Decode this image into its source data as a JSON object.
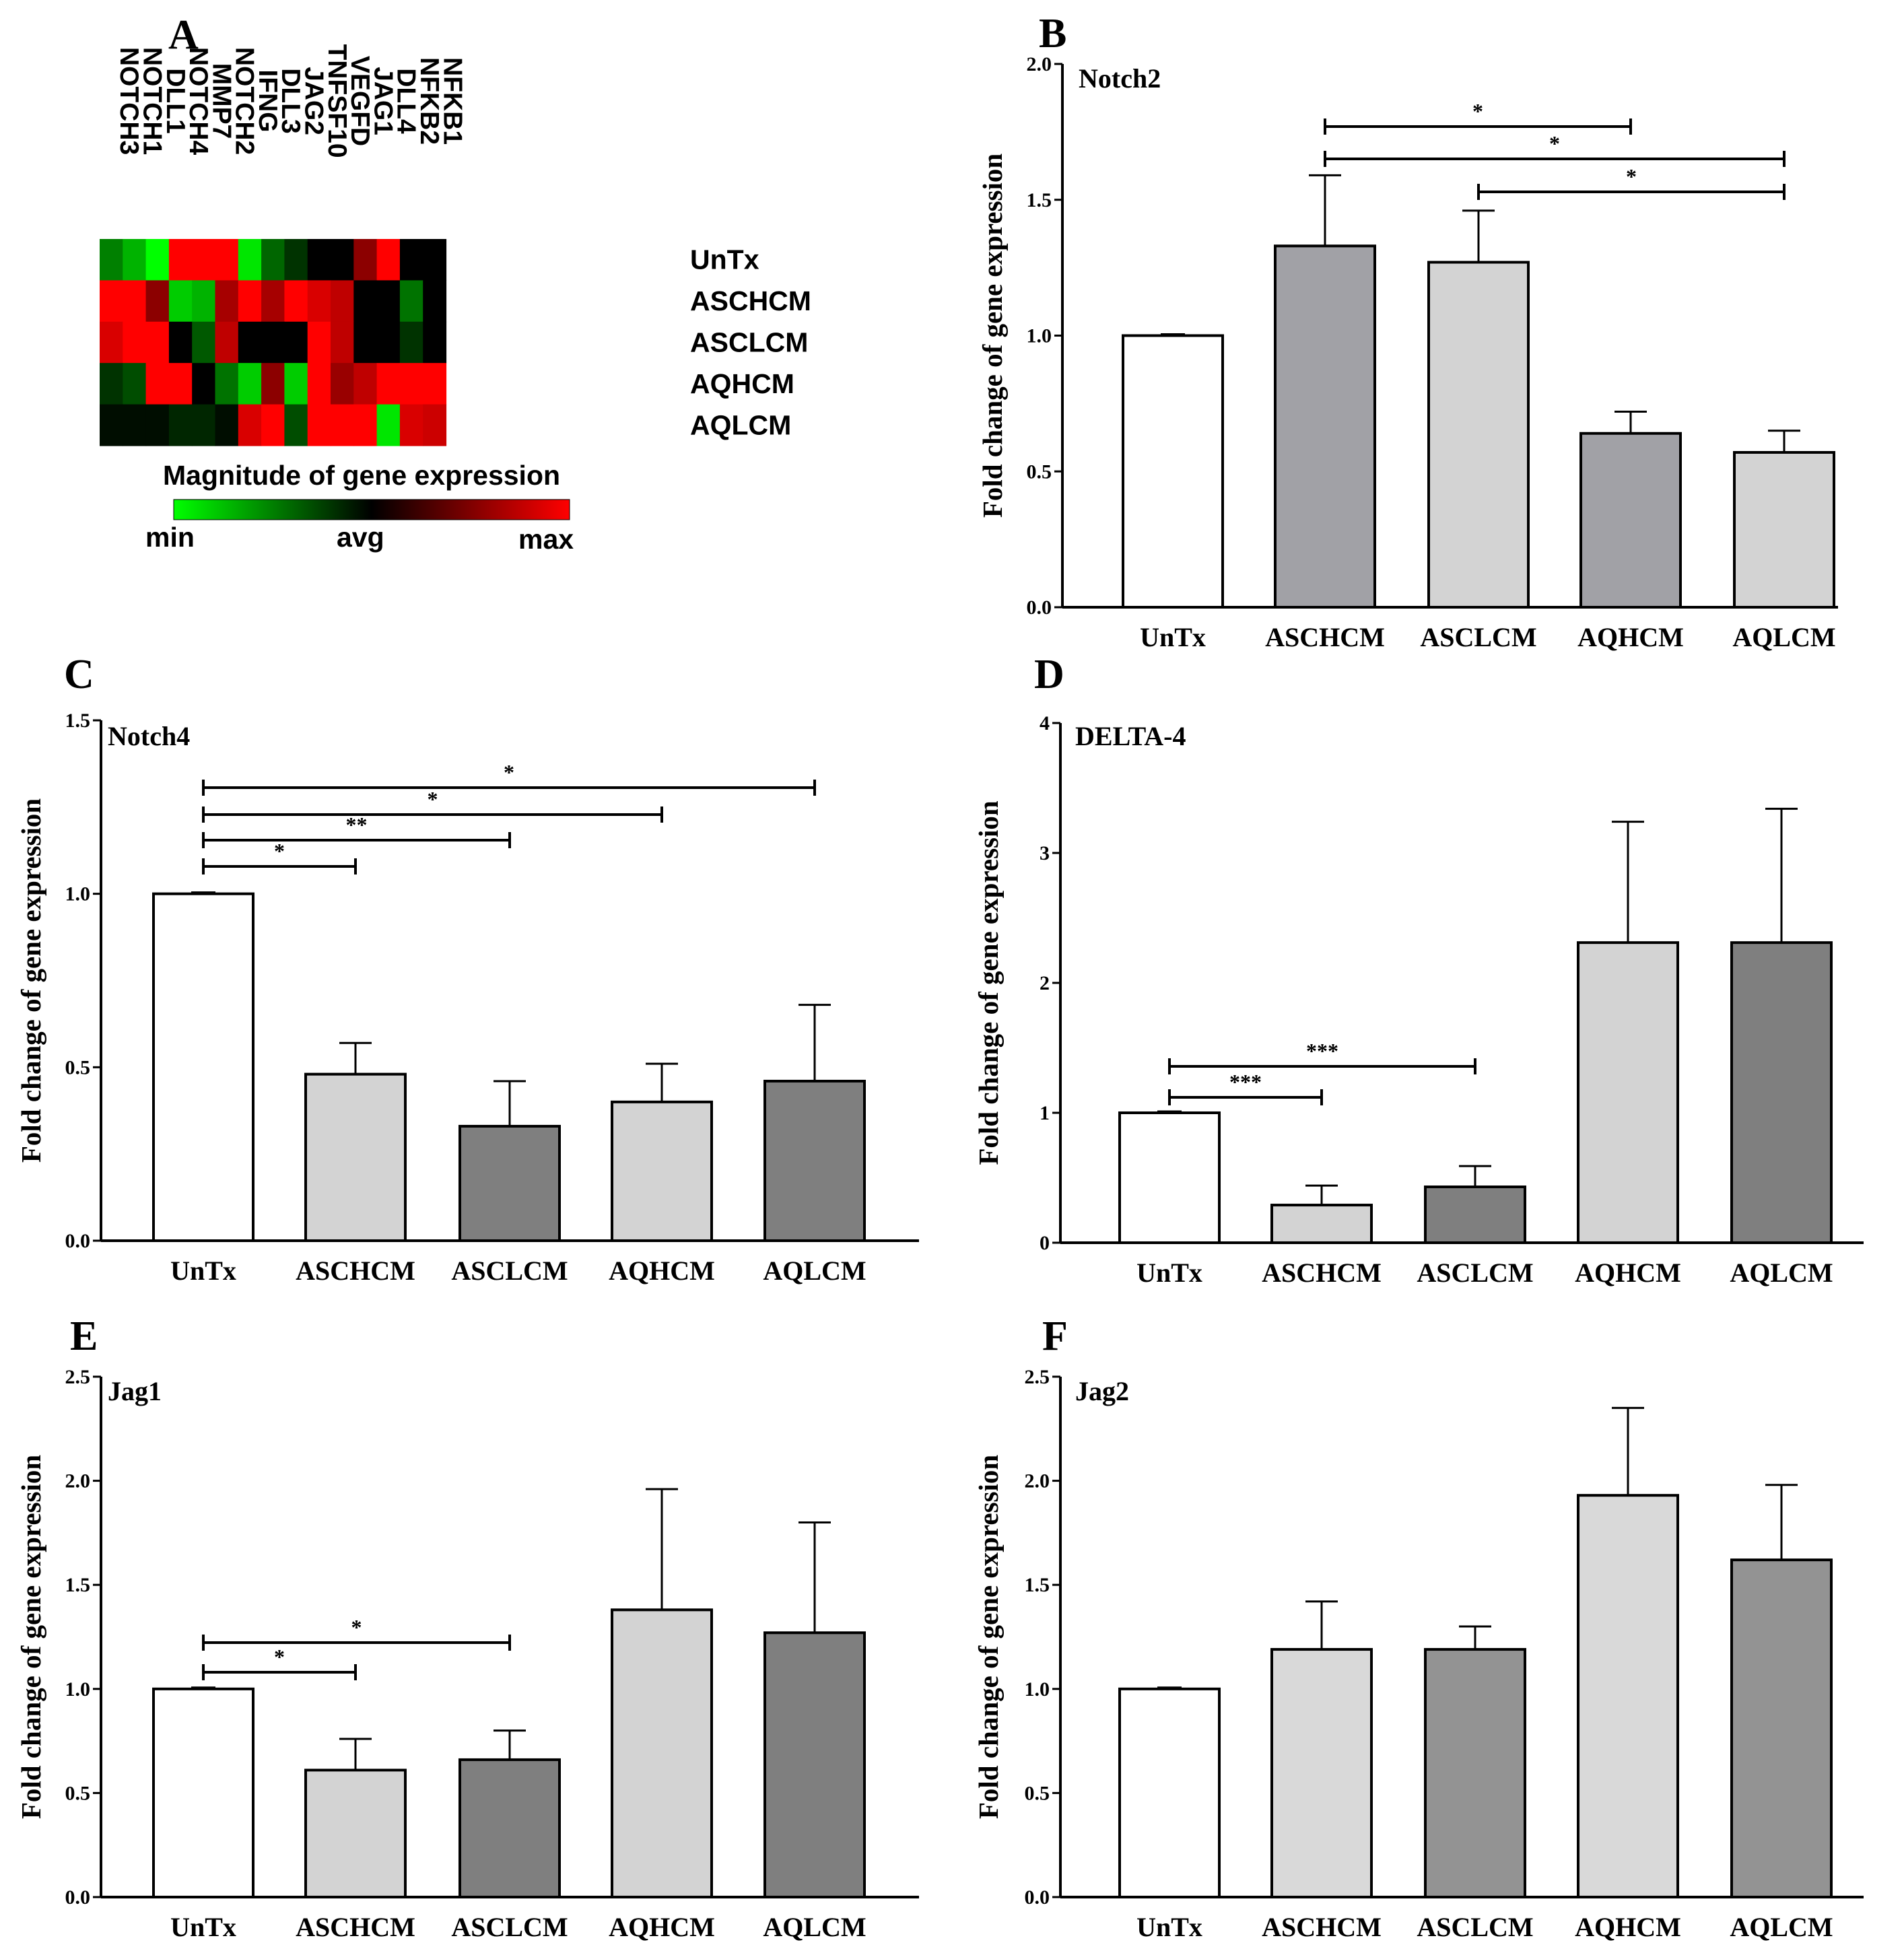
{
  "heatmap": {
    "panel": "A",
    "columns": [
      "NOTCH3",
      "NOTCH1",
      "DLL1",
      "NOTCH4",
      "MMP7",
      "NOTCH2",
      "IFNG",
      "DLL3",
      "JAG2",
      "TNFSF10",
      "VEGFD",
      "JAG1",
      "DLL4",
      "NFKB2",
      "NFKB1"
    ],
    "rows": [
      "UnTx",
      "ASCHCM",
      "ASCLCM",
      "AQHCM",
      "AQLCM"
    ],
    "values": [
      [
        -0.5,
        -0.7,
        -1.0,
        1.0,
        1.0,
        1.0,
        -0.9,
        -0.4,
        -0.2,
        0.0,
        0.0,
        0.55,
        1.0,
        0.0,
        0.0
      ],
      [
        1.0,
        1.0,
        0.55,
        -0.8,
        -0.7,
        0.65,
        1.0,
        0.65,
        1.0,
        0.85,
        0.75,
        0.0,
        0.0,
        -0.45,
        0.0
      ],
      [
        0.85,
        1.0,
        1.0,
        0.0,
        -0.35,
        0.75,
        0.0,
        0.0,
        0.0,
        1.0,
        0.75,
        0.0,
        0.0,
        -0.2,
        0.0
      ],
      [
        -0.2,
        -0.3,
        1.0,
        1.0,
        0.0,
        -0.45,
        -0.8,
        0.55,
        -0.8,
        1.0,
        0.6,
        0.75,
        1.0,
        1.0,
        1.0
      ],
      [
        -0.05,
        -0.05,
        -0.05,
        -0.15,
        -0.15,
        -0.05,
        0.85,
        1.0,
        -0.3,
        1.0,
        1.0,
        1.0,
        -0.9,
        0.85,
        0.8
      ]
    ],
    "legend": {
      "title": "Magnitude  of gene expression",
      "min": "min",
      "avg": "avg",
      "max": "max",
      "colors": [
        "#00ff00",
        "#000000",
        "#ff0000"
      ]
    }
  },
  "chart_data": [
    {
      "panel": "B",
      "type": "bar",
      "title": "Notch2",
      "ylabel": "Fold change of gene expression",
      "ylim": [
        0,
        2.0
      ],
      "yticks": [
        "0.0",
        "0.5",
        "1.0",
        "1.5",
        "2.0"
      ],
      "categories": [
        "UnTx",
        "ASCHCM",
        "ASCLCM",
        "AQHCM",
        "AQLCM"
      ],
      "values": [
        1.0,
        1.33,
        1.27,
        0.64,
        0.57
      ],
      "errors": [
        0.0,
        0.26,
        0.19,
        0.08,
        0.08
      ],
      "colors": [
        "#ffffff",
        "#a1a1a6",
        "#d3d3d3",
        "#a1a1a6",
        "#d3d3d3"
      ],
      "significance": [
        {
          "from": 1,
          "to": 3,
          "label": "*"
        },
        {
          "from": 1,
          "to": 4,
          "label": "*"
        },
        {
          "from": 2,
          "to": 4,
          "label": "*"
        }
      ]
    },
    {
      "panel": "C",
      "type": "bar",
      "title": "Notch4",
      "ylabel": "Fold change of gene expression",
      "ylim": [
        0,
        1.5
      ],
      "yticks": [
        "0.0",
        "0.5",
        "1.0",
        "1.5"
      ],
      "categories": [
        "UnTx",
        "ASCHCM",
        "ASCLCM",
        "AQHCM",
        "AQLCM"
      ],
      "values": [
        1.0,
        0.48,
        0.33,
        0.4,
        0.46
      ],
      "errors": [
        0.0,
        0.09,
        0.13,
        0.11,
        0.22
      ],
      "colors": [
        "#ffffff",
        "#d3d3d3",
        "#7f7f7f",
        "#d3d3d3",
        "#7f7f7f"
      ],
      "significance": [
        {
          "from": 0,
          "to": 4,
          "label": "*"
        },
        {
          "from": 0,
          "to": 3,
          "label": "*"
        },
        {
          "from": 0,
          "to": 2,
          "label": "**"
        },
        {
          "from": 0,
          "to": 1,
          "label": "*"
        }
      ]
    },
    {
      "panel": "D",
      "type": "bar",
      "title": "DELTA-4",
      "ylabel": "Fold change of gene expression",
      "ylim": [
        0,
        4
      ],
      "yticks": [
        "0",
        "1",
        "2",
        "3",
        "4"
      ],
      "categories": [
        "UnTx",
        "ASCHCM",
        "ASCLCM",
        "AQHCM",
        "AQLCM"
      ],
      "values": [
        1.0,
        0.29,
        0.43,
        2.31,
        2.31
      ],
      "errors": [
        0.0,
        0.15,
        0.16,
        0.93,
        1.03
      ],
      "colors": [
        "#ffffff",
        "#d3d3d3",
        "#7f7f7f",
        "#d3d3d3",
        "#7f7f7f"
      ],
      "significance": [
        {
          "from": 0,
          "to": 2,
          "label": "***"
        },
        {
          "from": 0,
          "to": 1,
          "label": "***"
        }
      ]
    },
    {
      "panel": "E",
      "type": "bar",
      "title": "Jag1",
      "ylabel": "Fold change of gene expression",
      "ylim": [
        0,
        2.5
      ],
      "yticks": [
        "0.0",
        "0.5",
        "1.0",
        "1.5",
        "2.0",
        "2.5"
      ],
      "categories": [
        "UnTx",
        "ASCHCM",
        "ASCLCM",
        "AQHCM",
        "AQLCM"
      ],
      "values": [
        1.0,
        0.61,
        0.66,
        1.38,
        1.27
      ],
      "errors": [
        0.0,
        0.15,
        0.14,
        0.58,
        0.53
      ],
      "colors": [
        "#ffffff",
        "#d3d3d3",
        "#7f7f7f",
        "#d3d3d3",
        "#7f7f7f"
      ],
      "significance": [
        {
          "from": 0,
          "to": 2,
          "label": "*"
        },
        {
          "from": 0,
          "to": 1,
          "label": "*"
        }
      ]
    },
    {
      "panel": "F",
      "type": "bar",
      "title": "Jag2",
      "ylabel": "Fold change of gene expression",
      "ylim": [
        0,
        2.5
      ],
      "yticks": [
        "0.0",
        "0.5",
        "1.0",
        "1.5",
        "2.0",
        "2.5"
      ],
      "categories": [
        "UnTx",
        "ASCHCM",
        "ASCLCM",
        "AQHCM",
        "AQLCM"
      ],
      "values": [
        1.0,
        1.19,
        1.19,
        1.93,
        1.62
      ],
      "errors": [
        0.0,
        0.23,
        0.11,
        0.42,
        0.36
      ],
      "colors": [
        "#ffffff",
        "#d9d9d9",
        "#939393",
        "#d9d9d9",
        "#939393"
      ],
      "significance": []
    }
  ]
}
